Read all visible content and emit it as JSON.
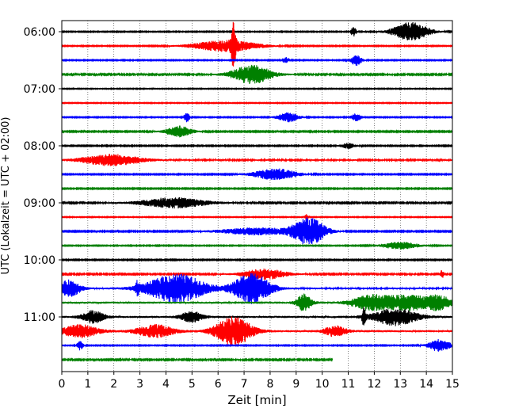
{
  "chart_data": {
    "type": "line",
    "title": "",
    "xlabel": "Zeit  [min]",
    "ylabel": "UTC (Lokalzeit = UTC + 02:00)",
    "xlim": [
      0,
      15
    ],
    "x_ticks": [
      0,
      1,
      2,
      3,
      4,
      5,
      6,
      7,
      8,
      9,
      10,
      11,
      12,
      13,
      14,
      15
    ],
    "x_grid": true,
    "y_grid": false,
    "y_ticks": [
      {
        "label": "06:00",
        "trace": 0
      },
      {
        "label": "07:00",
        "trace": 4
      },
      {
        "label": "08:00",
        "trace": 8
      },
      {
        "label": "09:00",
        "trace": 12
      },
      {
        "label": "10:00",
        "trace": 16
      },
      {
        "label": "11:00",
        "trace": 20
      }
    ],
    "traces": [
      {
        "start": "06:00",
        "color": "#000000",
        "end_min": 15,
        "noise": 0.04,
        "events": [
          {
            "t": 11.2,
            "amp": 0.45,
            "w": 0.08
          },
          {
            "t": 13.4,
            "amp": 0.9,
            "w": 0.5
          }
        ]
      },
      {
        "start": "06:15",
        "color": "#ff0000",
        "end_min": 15,
        "noise": 0.04,
        "events": [
          {
            "t": 6.6,
            "amp": 1.9,
            "w": 0.06
          },
          {
            "t": 6.3,
            "amp": 0.55,
            "w": 0.9
          }
        ]
      },
      {
        "start": "06:30",
        "color": "#0000ff",
        "end_min": 15,
        "noise": 0.04,
        "events": [
          {
            "t": 8.6,
            "amp": 0.3,
            "w": 0.1
          },
          {
            "t": 11.3,
            "amp": 0.55,
            "w": 0.15
          }
        ]
      },
      {
        "start": "06:45",
        "color": "#008000",
        "end_min": 15,
        "noise": 0.06,
        "events": [
          {
            "t": 7.3,
            "amp": 0.9,
            "w": 0.55
          }
        ]
      },
      {
        "start": "07:00",
        "color": "#000000",
        "end_min": 15,
        "noise": 0.035,
        "events": []
      },
      {
        "start": "07:15",
        "color": "#ff0000",
        "end_min": 15,
        "noise": 0.035,
        "events": []
      },
      {
        "start": "07:30",
        "color": "#0000ff",
        "end_min": 15,
        "noise": 0.04,
        "events": [
          {
            "t": 4.8,
            "amp": 0.45,
            "w": 0.08
          },
          {
            "t": 8.7,
            "amp": 0.45,
            "w": 0.3
          },
          {
            "t": 11.3,
            "amp": 0.35,
            "w": 0.15
          }
        ]
      },
      {
        "start": "07:45",
        "color": "#008000",
        "end_min": 15,
        "noise": 0.05,
        "events": [
          {
            "t": 4.5,
            "amp": 0.55,
            "w": 0.35
          }
        ]
      },
      {
        "start": "08:00",
        "color": "#000000",
        "end_min": 15,
        "noise": 0.045,
        "events": [
          {
            "t": 11.0,
            "amp": 0.25,
            "w": 0.2
          }
        ]
      },
      {
        "start": "08:15",
        "color": "#ff0000",
        "end_min": 15,
        "noise": 0.07,
        "events": [
          {
            "t": 1.9,
            "amp": 0.55,
            "w": 0.8
          }
        ]
      },
      {
        "start": "08:30",
        "color": "#0000ff",
        "end_min": 15,
        "noise": 0.045,
        "events": [
          {
            "t": 8.2,
            "amp": 0.55,
            "w": 0.6
          }
        ]
      },
      {
        "start": "08:45",
        "color": "#008000",
        "end_min": 15,
        "noise": 0.045,
        "events": []
      },
      {
        "start": "09:00",
        "color": "#000000",
        "end_min": 15,
        "noise": 0.06,
        "events": [
          {
            "t": 4.3,
            "amp": 0.5,
            "w": 0.9
          }
        ]
      },
      {
        "start": "09:15",
        "color": "#ff0000",
        "end_min": 15,
        "noise": 0.035,
        "events": [
          {
            "t": 9.4,
            "amp": 0.3,
            "w": 0.05
          }
        ]
      },
      {
        "start": "09:30",
        "color": "#0000ff",
        "end_min": 15,
        "noise": 0.05,
        "events": [
          {
            "t": 9.5,
            "amp": 1.3,
            "w": 0.45
          },
          {
            "t": 7.5,
            "amp": 0.35,
            "w": 1.0
          }
        ]
      },
      {
        "start": "09:45",
        "color": "#008000",
        "end_min": 15,
        "noise": 0.04,
        "events": [
          {
            "t": 13.0,
            "amp": 0.35,
            "w": 0.5
          }
        ]
      },
      {
        "start": "10:00",
        "color": "#000000",
        "end_min": 15,
        "noise": 0.045,
        "events": []
      },
      {
        "start": "10:15",
        "color": "#ff0000",
        "end_min": 15,
        "noise": 0.06,
        "events": [
          {
            "t": 7.8,
            "amp": 0.5,
            "w": 0.6
          },
          {
            "t": 14.6,
            "amp": 0.45,
            "w": 0.05
          }
        ]
      },
      {
        "start": "10:30",
        "color": "#0000ff",
        "end_min": 15,
        "noise": 0.08,
        "events": [
          {
            "t": 0.3,
            "amp": 0.8,
            "w": 0.3
          },
          {
            "t": 4.4,
            "amp": 1.4,
            "w": 0.8
          },
          {
            "t": 7.3,
            "amp": 1.5,
            "w": 0.5
          },
          {
            "t": 2.9,
            "amp": 0.6,
            "w": 0.05
          }
        ]
      },
      {
        "start": "10:45",
        "color": "#008000",
        "end_min": 15,
        "noise": 0.1,
        "events": [
          {
            "t": 9.3,
            "amp": 0.8,
            "w": 0.2
          },
          {
            "t": 11.8,
            "amp": 0.6,
            "w": 0.5
          },
          {
            "t": 13.3,
            "amp": 0.7,
            "w": 0.8
          },
          {
            "t": 14.5,
            "amp": 0.5,
            "w": 0.3
          }
        ]
      },
      {
        "start": "11:00",
        "color": "#000000",
        "end_min": 15,
        "noise": 0.1,
        "events": [
          {
            "t": 1.2,
            "amp": 0.6,
            "w": 0.3
          },
          {
            "t": 5.0,
            "amp": 0.5,
            "w": 0.3
          },
          {
            "t": 12.8,
            "amp": 0.8,
            "w": 0.6
          },
          {
            "t": 11.6,
            "amp": 0.8,
            "w": 0.05
          }
        ]
      },
      {
        "start": "11:15",
        "color": "#ff0000",
        "end_min": 15,
        "noise": 0.1,
        "events": [
          {
            "t": 0.7,
            "amp": 0.6,
            "w": 0.5
          },
          {
            "t": 3.6,
            "amp": 0.6,
            "w": 0.5
          },
          {
            "t": 6.6,
            "amp": 1.4,
            "w": 0.5
          },
          {
            "t": 10.5,
            "amp": 0.5,
            "w": 0.3
          }
        ]
      },
      {
        "start": "11:30",
        "color": "#0000ff",
        "end_min": 15,
        "noise": 0.04,
        "events": [
          {
            "t": 0.7,
            "amp": 0.45,
            "w": 0.08
          },
          {
            "t": 14.5,
            "amp": 0.6,
            "w": 0.3
          }
        ]
      },
      {
        "start": "11:45",
        "color": "#008000",
        "end_min": 10.4,
        "noise": 0.06,
        "events": []
      }
    ]
  }
}
